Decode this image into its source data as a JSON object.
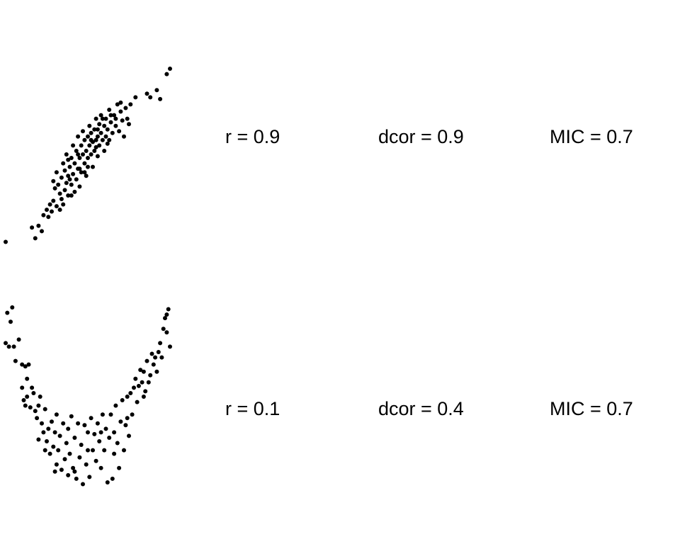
{
  "rows": [
    {
      "r": "r = 0.9",
      "dcor": "dcor = 0.9",
      "mic": "MIC = 0.7"
    },
    {
      "r": "r = 0.1",
      "dcor": "dcor = 0.4",
      "mic": "MIC = 0.7"
    }
  ],
  "chart_data": [
    {
      "type": "scatter",
      "title": "",
      "xlabel": "",
      "ylabel": "",
      "grid": false,
      "axes_visible": false,
      "xlim": [
        0,
        1
      ],
      "ylim": [
        0,
        1
      ],
      "marker_color": "#000000",
      "points": [
        [
          0.0,
          0.01
        ],
        [
          0.16,
          0.09
        ],
        [
          0.18,
          0.03
        ],
        [
          0.2,
          0.1
        ],
        [
          0.23,
          0.16
        ],
        [
          0.22,
          0.07
        ],
        [
          0.25,
          0.19
        ],
        [
          0.26,
          0.15
        ],
        [
          0.28,
          0.18
        ],
        [
          0.29,
          0.24
        ],
        [
          0.3,
          0.31
        ],
        [
          0.31,
          0.21
        ],
        [
          0.31,
          0.4
        ],
        [
          0.32,
          0.33
        ],
        [
          0.33,
          0.28
        ],
        [
          0.34,
          0.25
        ],
        [
          0.34,
          0.37
        ],
        [
          0.35,
          0.45
        ],
        [
          0.36,
          0.3
        ],
        [
          0.36,
          0.41
        ],
        [
          0.37,
          0.34
        ],
        [
          0.37,
          0.5
        ],
        [
          0.38,
          0.38
        ],
        [
          0.38,
          0.27
        ],
        [
          0.39,
          0.43
        ],
        [
          0.4,
          0.48
        ],
        [
          0.4,
          0.33
        ],
        [
          0.41,
          0.55
        ],
        [
          0.41,
          0.39
        ],
        [
          0.42,
          0.45
        ],
        [
          0.42,
          0.29
        ],
        [
          0.43,
          0.52
        ],
        [
          0.43,
          0.36
        ],
        [
          0.44,
          0.42
        ],
        [
          0.44,
          0.6
        ],
        [
          0.45,
          0.48
        ],
        [
          0.45,
          0.32
        ],
        [
          0.46,
          0.55
        ],
        [
          0.46,
          0.4
        ],
        [
          0.47,
          0.5
        ],
        [
          0.47,
          0.63
        ],
        [
          0.48,
          0.45
        ],
        [
          0.48,
          0.58
        ],
        [
          0.49,
          0.52
        ],
        [
          0.49,
          0.38
        ],
        [
          0.5,
          0.6
        ],
        [
          0.5,
          0.48
        ],
        [
          0.51,
          0.66
        ],
        [
          0.51,
          0.55
        ],
        [
          0.52,
          0.5
        ],
        [
          0.52,
          0.62
        ],
        [
          0.53,
          0.57
        ],
        [
          0.53,
          0.43
        ],
        [
          0.54,
          0.64
        ],
        [
          0.54,
          0.52
        ],
        [
          0.55,
          0.7
        ],
        [
          0.55,
          0.58
        ],
        [
          0.56,
          0.6
        ],
        [
          0.56,
          0.49
        ],
        [
          0.57,
          0.67
        ],
        [
          0.57,
          0.55
        ],
        [
          0.58,
          0.62
        ],
        [
          0.58,
          0.72
        ],
        [
          0.59,
          0.58
        ],
        [
          0.6,
          0.66
        ],
        [
          0.6,
          0.52
        ],
        [
          0.61,
          0.7
        ],
        [
          0.61,
          0.6
        ],
        [
          0.62,
          0.64
        ],
        [
          0.63,
          0.75
        ],
        [
          0.63,
          0.58
        ],
        [
          0.64,
          0.68
        ],
        [
          0.65,
          0.62
        ],
        [
          0.66,
          0.72
        ],
        [
          0.67,
          0.66
        ],
        [
          0.68,
          0.78
        ],
        [
          0.69,
          0.63
        ],
        [
          0.7,
          0.74
        ],
        [
          0.71,
          0.69
        ],
        [
          0.72,
          0.6
        ],
        [
          0.73,
          0.76
        ],
        [
          0.74,
          0.7
        ],
        [
          0.75,
          0.67
        ],
        [
          0.76,
          0.78
        ],
        [
          0.79,
          0.82
        ],
        [
          0.86,
          0.84
        ],
        [
          0.88,
          0.82
        ],
        [
          0.92,
          0.86
        ],
        [
          0.94,
          0.81
        ],
        [
          0.98,
          0.95
        ],
        [
          1.0,
          0.98
        ],
        [
          0.27,
          0.22
        ],
        [
          0.33,
          0.19
        ],
        [
          0.39,
          0.36
        ],
        [
          0.44,
          0.5
        ],
        [
          0.48,
          0.4
        ],
        [
          0.52,
          0.58
        ],
        [
          0.56,
          0.64
        ],
        [
          0.59,
          0.7
        ],
        [
          0.62,
          0.56
        ],
        [
          0.64,
          0.72
        ],
        [
          0.67,
          0.7
        ],
        [
          0.7,
          0.79
        ],
        [
          0.35,
          0.22
        ],
        [
          0.4,
          0.27
        ],
        [
          0.45,
          0.42
        ],
        [
          0.5,
          0.43
        ],
        [
          0.55,
          0.54
        ],
        [
          0.29,
          0.35
        ],
        [
          0.38,
          0.47
        ]
      ]
    },
    {
      "type": "scatter",
      "title": "",
      "xlabel": "",
      "ylabel": "",
      "grid": false,
      "axes_visible": false,
      "xlim": [
        0,
        1
      ],
      "ylim": [
        0,
        1
      ],
      "marker_color": "#000000",
      "points": [
        [
          0.0,
          0.8
        ],
        [
          0.01,
          0.97
        ],
        [
          0.02,
          0.78
        ],
        [
          0.03,
          0.92
        ],
        [
          0.04,
          1.0
        ],
        [
          0.05,
          0.78
        ],
        [
          0.06,
          0.7
        ],
        [
          0.08,
          0.82
        ],
        [
          0.1,
          0.68
        ],
        [
          0.12,
          0.67
        ],
        [
          0.13,
          0.6
        ],
        [
          0.14,
          0.68
        ],
        [
          0.1,
          0.55
        ],
        [
          0.11,
          0.48
        ],
        [
          0.12,
          0.45
        ],
        [
          0.13,
          0.5
        ],
        [
          0.15,
          0.44
        ],
        [
          0.16,
          0.55
        ],
        [
          0.17,
          0.52
        ],
        [
          0.18,
          0.42
        ],
        [
          0.19,
          0.38
        ],
        [
          0.2,
          0.45
        ],
        [
          0.21,
          0.5
        ],
        [
          0.22,
          0.35
        ],
        [
          0.23,
          0.3
        ],
        [
          0.24,
          0.43
        ],
        [
          0.24,
          0.2
        ],
        [
          0.25,
          0.25
        ],
        [
          0.26,
          0.32
        ],
        [
          0.27,
          0.18
        ],
        [
          0.28,
          0.36
        ],
        [
          0.29,
          0.22
        ],
        [
          0.3,
          0.3
        ],
        [
          0.31,
          0.12
        ],
        [
          0.31,
          0.4
        ],
        [
          0.32,
          0.2
        ],
        [
          0.33,
          0.28
        ],
        [
          0.34,
          0.09
        ],
        [
          0.35,
          0.35
        ],
        [
          0.36,
          0.15
        ],
        [
          0.37,
          0.24
        ],
        [
          0.38,
          0.06
        ],
        [
          0.38,
          0.32
        ],
        [
          0.39,
          0.18
        ],
        [
          0.4,
          0.39
        ],
        [
          0.41,
          0.1
        ],
        [
          0.42,
          0.27
        ],
        [
          0.43,
          0.04
        ],
        [
          0.44,
          0.35
        ],
        [
          0.45,
          0.16
        ],
        [
          0.46,
          0.23
        ],
        [
          0.47,
          0.01
        ],
        [
          0.48,
          0.34
        ],
        [
          0.49,
          0.12
        ],
        [
          0.5,
          0.3
        ],
        [
          0.51,
          0.05
        ],
        [
          0.52,
          0.38
        ],
        [
          0.53,
          0.2
        ],
        [
          0.54,
          0.29
        ],
        [
          0.55,
          0.14
        ],
        [
          0.56,
          0.35
        ],
        [
          0.57,
          0.25
        ],
        [
          0.58,
          0.1
        ],
        [
          0.59,
          0.4
        ],
        [
          0.6,
          0.2
        ],
        [
          0.61,
          0.32
        ],
        [
          0.62,
          0.02
        ],
        [
          0.63,
          0.27
        ],
        [
          0.64,
          0.4
        ],
        [
          0.65,
          0.04
        ],
        [
          0.66,
          0.3
        ],
        [
          0.67,
          0.45
        ],
        [
          0.68,
          0.24
        ],
        [
          0.69,
          0.1
        ],
        [
          0.7,
          0.36
        ],
        [
          0.71,
          0.48
        ],
        [
          0.72,
          0.2
        ],
        [
          0.73,
          0.34
        ],
        [
          0.74,
          0.5
        ],
        [
          0.75,
          0.28
        ],
        [
          0.76,
          0.52
        ],
        [
          0.77,
          0.4
        ],
        [
          0.78,
          0.55
        ],
        [
          0.79,
          0.6
        ],
        [
          0.8,
          0.47
        ],
        [
          0.81,
          0.56
        ],
        [
          0.82,
          0.65
        ],
        [
          0.83,
          0.58
        ],
        [
          0.84,
          0.64
        ],
        [
          0.85,
          0.53
        ],
        [
          0.86,
          0.7
        ],
        [
          0.87,
          0.58
        ],
        [
          0.88,
          0.62
        ],
        [
          0.89,
          0.74
        ],
        [
          0.9,
          0.68
        ],
        [
          0.91,
          0.72
        ],
        [
          0.92,
          0.64
        ],
        [
          0.93,
          0.75
        ],
        [
          0.94,
          0.8
        ],
        [
          0.95,
          0.72
        ],
        [
          0.96,
          0.88
        ],
        [
          0.97,
          0.94
        ],
        [
          0.98,
          0.86
        ],
        [
          0.99,
          0.99
        ],
        [
          1.0,
          0.78
        ],
        [
          0.98,
          0.96
        ],
        [
          0.2,
          0.26
        ],
        [
          0.3,
          0.08
        ],
        [
          0.42,
          0.08
        ],
        [
          0.5,
          0.2
        ],
        [
          0.58,
          0.3
        ],
        [
          0.66,
          0.18
        ],
        [
          0.74,
          0.38
        ],
        [
          0.84,
          0.5
        ]
      ]
    }
  ]
}
